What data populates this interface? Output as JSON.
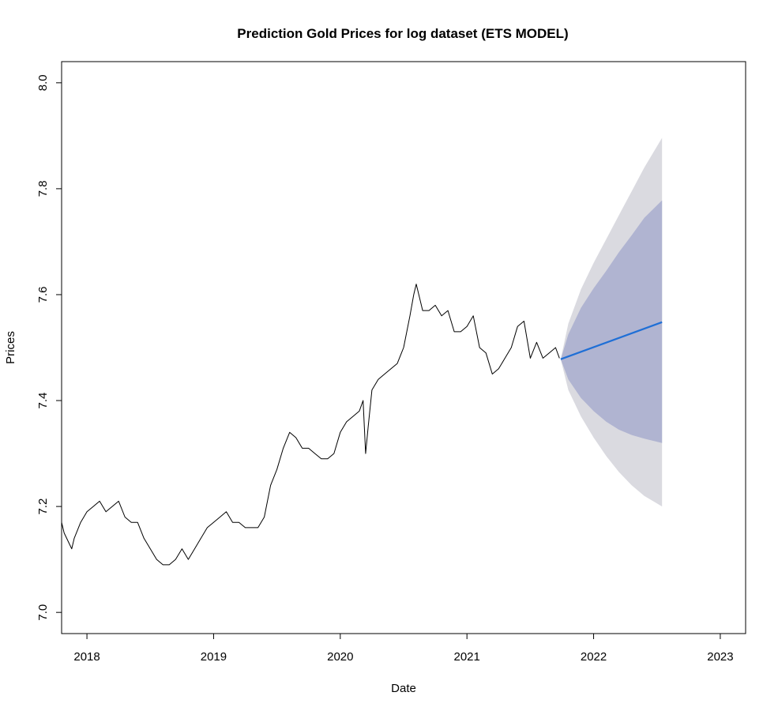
{
  "chart_data": {
    "type": "line",
    "title": "Prediction Gold Prices for log dataset (ETS MODEL)",
    "xlabel": "Date",
    "ylabel": "Prices",
    "xlim": [
      2017.8,
      2023.2
    ],
    "ylim": [
      6.96,
      8.04
    ],
    "x_ticks": [
      2018,
      2019,
      2020,
      2021,
      2022,
      2023
    ],
    "x_tick_labels": [
      "2018",
      "2019",
      "2020",
      "2021",
      "2022",
      "2023"
    ],
    "y_ticks": [
      7.0,
      7.2,
      7.4,
      7.6,
      7.8,
      8.0
    ],
    "y_tick_labels": [
      "7.0",
      "7.2",
      "7.4",
      "7.6",
      "7.8",
      "8.0"
    ],
    "grid": false,
    "legend": "none",
    "colors": {
      "history": "#000000",
      "forecast": "#1f6fd6",
      "interval_80": "#b0b4d1",
      "interval_95": "#dadae0"
    },
    "series": [
      {
        "role": "observed",
        "x": [
          2017.8,
          2017.82,
          2017.86,
          2017.88,
          2017.9,
          2017.95,
          2018.0,
          2018.05,
          2018.1,
          2018.15,
          2018.2,
          2018.25,
          2018.3,
          2018.35,
          2018.4,
          2018.45,
          2018.5,
          2018.55,
          2018.6,
          2018.65,
          2018.7,
          2018.75,
          2018.8,
          2018.85,
          2018.9,
          2018.95,
          2019.0,
          2019.05,
          2019.1,
          2019.15,
          2019.2,
          2019.25,
          2019.3,
          2019.35,
          2019.4,
          2019.45,
          2019.5,
          2019.55,
          2019.6,
          2019.65,
          2019.7,
          2019.75,
          2019.8,
          2019.85,
          2019.9,
          2019.95,
          2020.0,
          2020.05,
          2020.1,
          2020.15,
          2020.18,
          2020.19,
          2020.2,
          2020.22,
          2020.25,
          2020.3,
          2020.35,
          2020.4,
          2020.45,
          2020.5,
          2020.55,
          2020.58,
          2020.6,
          2020.65,
          2020.7,
          2020.75,
          2020.8,
          2020.85,
          2020.9,
          2020.95,
          2021.0,
          2021.05,
          2021.1,
          2021.15,
          2021.2,
          2021.25,
          2021.3,
          2021.35,
          2021.4,
          2021.45,
          2021.5,
          2021.55,
          2021.6,
          2021.65,
          2021.7,
          2021.73
        ],
        "y": [
          7.17,
          7.15,
          7.13,
          7.12,
          7.14,
          7.17,
          7.19,
          7.2,
          7.21,
          7.19,
          7.2,
          7.21,
          7.18,
          7.17,
          7.17,
          7.14,
          7.12,
          7.1,
          7.09,
          7.09,
          7.1,
          7.12,
          7.1,
          7.12,
          7.14,
          7.16,
          7.17,
          7.18,
          7.19,
          7.17,
          7.17,
          7.16,
          7.16,
          7.16,
          7.18,
          7.24,
          7.27,
          7.31,
          7.34,
          7.33,
          7.31,
          7.31,
          7.3,
          7.29,
          7.29,
          7.3,
          7.34,
          7.36,
          7.37,
          7.38,
          7.4,
          7.35,
          7.3,
          7.35,
          7.42,
          7.44,
          7.45,
          7.46,
          7.47,
          7.5,
          7.56,
          7.6,
          7.62,
          7.57,
          7.57,
          7.58,
          7.56,
          7.57,
          7.53,
          7.53,
          7.54,
          7.56,
          7.5,
          7.49,
          7.45,
          7.46,
          7.48,
          7.5,
          7.54,
          7.55,
          7.48,
          7.51,
          7.48,
          7.49,
          7.5,
          7.48
        ]
      },
      {
        "role": "forecast",
        "x": [
          2021.74,
          2022.54
        ],
        "y": [
          7.478,
          7.548
        ]
      }
    ],
    "intervals": [
      {
        "level": 95,
        "x": [
          2021.74,
          2021.8,
          2021.9,
          2022.0,
          2022.1,
          2022.2,
          2022.3,
          2022.4,
          2022.54
        ],
        "lower": [
          7.478,
          7.42,
          7.37,
          7.33,
          7.295,
          7.265,
          7.24,
          7.22,
          7.2
        ],
        "upper": [
          7.478,
          7.545,
          7.61,
          7.66,
          7.705,
          7.75,
          7.795,
          7.84,
          7.896
        ]
      },
      {
        "level": 80,
        "x": [
          2021.74,
          2021.8,
          2021.9,
          2022.0,
          2022.1,
          2022.2,
          2022.3,
          2022.4,
          2022.54
        ],
        "lower": [
          7.478,
          7.44,
          7.405,
          7.38,
          7.36,
          7.345,
          7.335,
          7.328,
          7.32
        ],
        "upper": [
          7.478,
          7.525,
          7.575,
          7.612,
          7.645,
          7.68,
          7.712,
          7.745,
          7.778
        ]
      }
    ]
  }
}
